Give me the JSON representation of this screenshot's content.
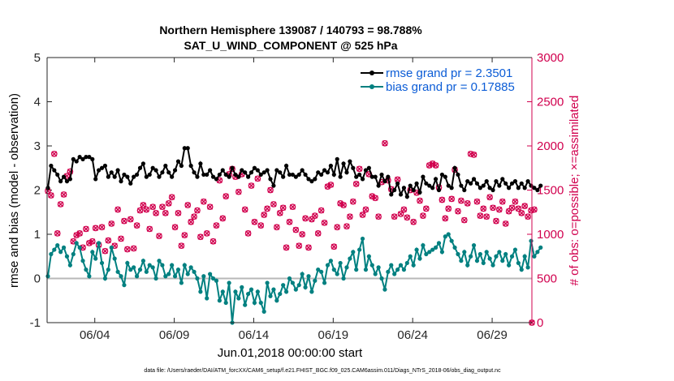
{
  "chart_data": {
    "type": "line",
    "title_line1": "Northern Hemisphere 139087 / 140793 = 98.788%",
    "title_line2": "SAT_U_WIND_COMPONENT @ 525 hPa",
    "xlabel": "Jun.01,2018 00:00:00 start",
    "ylabel_left": "rmse and bias (model - observation)",
    "ylabel_right": "# of obs: o=possible; ×=assimilated",
    "ylim_left": [
      -1,
      5
    ],
    "yticks_left": [
      "-1",
      "0",
      "1",
      "2",
      "3",
      "4",
      "5"
    ],
    "ylim_right": [
      0,
      3000
    ],
    "yticks_right": [
      "0",
      "500",
      "1000",
      "1500",
      "2000",
      "2500",
      "3000"
    ],
    "xlim_days": [
      0,
      30.5
    ],
    "xticks": [
      {
        "day": 3,
        "label": "06/04"
      },
      {
        "day": 8,
        "label": "06/09"
      },
      {
        "day": 13,
        "label": "06/14"
      },
      {
        "day": 18,
        "label": "06/19"
      },
      {
        "day": 23,
        "label": "06/24"
      },
      {
        "day": 28,
        "label": "06/29"
      }
    ],
    "series": [
      {
        "name": "rmse grand pr = 2.3501",
        "color": "#000000",
        "values": [
          2.05,
          2.55,
          2.45,
          2.35,
          2.2,
          2.3,
          2.2,
          2.25,
          2.7,
          2.65,
          2.75,
          2.7,
          2.75,
          2.75,
          2.7,
          2.25,
          2.45,
          2.5,
          2.55,
          2.3,
          2.4,
          2.3,
          2.45,
          2.2,
          2.35,
          2.3,
          2.15,
          2.3,
          2.35,
          2.5,
          2.6,
          2.3,
          2.35,
          2.5,
          2.45,
          2.3,
          2.4,
          2.55,
          2.4,
          2.3,
          2.45,
          2.65,
          2.55,
          2.95,
          2.95,
          2.55,
          2.4,
          2.3,
          2.6,
          2.35,
          2.35,
          2.45,
          2.3,
          2.25,
          2.35,
          2.45,
          2.35,
          2.3,
          2.5,
          2.35,
          2.3,
          2.45,
          2.4,
          2.3,
          2.4,
          2.5,
          2.45,
          2.35,
          2.4,
          2.45,
          2.25,
          2.1,
          2.45,
          2.4,
          2.3,
          2.55,
          2.35,
          2.35,
          2.3,
          2.35,
          2.45,
          2.35,
          2.25,
          2.2,
          2.25,
          2.4,
          2.35,
          2.45,
          2.4,
          2.55,
          2.35,
          2.7,
          2.3,
          2.6,
          2.4,
          2.65,
          2.5,
          2.3,
          2.35,
          2.25,
          2.45,
          2.5,
          2.3,
          2.3,
          2.1,
          2.35,
          2.2,
          2.3,
          1.9,
          2.0,
          2.15,
          1.9,
          2.05,
          1.85,
          2.1,
          2.0,
          2.15,
          1.95,
          2.3,
          2.15,
          2.1,
          2.05,
          2.25,
          2.0,
          2.35,
          2.3,
          2.1,
          2.05,
          2.5,
          2.35,
          2.1,
          2.0,
          2.2,
          2.15,
          2.25,
          2.15,
          2.05,
          2.1,
          2.2,
          2.05,
          2.0,
          2.2,
          2.1,
          2.25,
          2.15,
          2.05,
          2.15,
          2.2,
          2.05,
          2.15,
          2.05,
          2.2,
          2.1,
          2.05,
          2.0,
          2.1
        ]
      },
      {
        "name": "bias grand pr = 0.17885",
        "color": "#008080",
        "values": [
          0.05,
          0.55,
          0.65,
          0.75,
          0.6,
          0.7,
          0.5,
          0.3,
          0.55,
          0.8,
          0.7,
          0.4,
          0.2,
          0.05,
          0.6,
          0.45,
          0.8,
          0.35,
          0.0,
          0.2,
          0.7,
          0.45,
          0.15,
          0.05,
          -0.15,
          0.35,
          0.2,
          0.25,
          0.05,
          0.2,
          0.4,
          0.15,
          0.3,
          0.25,
          0.0,
          0.4,
          0.3,
          0.05,
          0.1,
          0.3,
          0.05,
          0.2,
          -0.1,
          0.3,
          0.1,
          0.25,
          0.15,
          0.0,
          -0.3,
          0.05,
          -0.45,
          0.1,
          0.0,
          -0.05,
          -0.5,
          -0.3,
          -0.55,
          -0.1,
          -1.0,
          -0.3,
          -0.45,
          -0.2,
          -0.6,
          -0.35,
          -0.25,
          -0.55,
          -0.3,
          -0.55,
          -0.75,
          -0.1,
          -0.4,
          -0.25,
          -0.5,
          -0.35,
          -0.15,
          -0.3,
          0.0,
          -0.1,
          -0.25,
          -0.15,
          0.1,
          -0.2,
          0.05,
          -0.3,
          -0.05,
          0.2,
          0.15,
          -0.1,
          0.3,
          0.4,
          0.2,
          0.1,
          0.35,
          0.0,
          0.25,
          0.45,
          0.6,
          0.2,
          0.65,
          0.9,
          0.2,
          0.5,
          0.3,
          0.1,
          0.25,
          0.0,
          -0.25,
          0.15,
          0.3,
          0.1,
          0.2,
          0.3,
          0.2,
          0.35,
          0.5,
          0.3,
          0.65,
          0.45,
          0.75,
          0.55,
          0.6,
          0.65,
          0.7,
          0.8,
          0.6,
          0.95,
          1.0,
          0.85,
          0.7,
          0.55,
          0.4,
          0.6,
          0.3,
          0.5,
          0.75,
          0.4,
          0.55,
          0.35,
          0.6,
          0.45,
          0.3,
          0.5,
          0.6,
          0.4,
          0.55,
          0.3,
          0.5,
          0.65,
          0.35,
          0.2,
          0.5,
          0.25,
          0.85,
          0.5,
          0.6,
          0.7
        ]
      },
      {
        "name": "# of obs possible",
        "color": "#d1004e",
        "values": [
          1490,
          1440,
          1910,
          1010,
          1340,
          1450,
          1660,
          1710,
          920,
          990,
          1010,
          850,
          1060,
          900,
          920,
          1070,
          880,
          1080,
          810,
          930,
          1120,
          870,
          1280,
          950,
          1150,
          830,
          1170,
          840,
          1100,
          1270,
          1330,
          1280,
          1060,
          1310,
          1240,
          980,
          1310,
          1240,
          1350,
          1420,
          1080,
          1240,
          870,
          990,
          1330,
          1140,
          1200,
          1270,
          970,
          1370,
          1010,
          1310,
          920,
          1100,
          1610,
          1180,
          1430,
          1680,
          1740,
          1650,
          1480,
          1680,
          1280,
          1010,
          1550,
          1140,
          1630,
          1100,
          1220,
          1290,
          1500,
          1340,
          1080,
          1240,
          1300,
          850,
          1140,
          1310,
          1050,
          870,
          1000,
          1180,
          850,
          1170,
          1210,
          1010,
          1270,
          1130,
          1540,
          1560,
          860,
          1080,
          1350,
          1330,
          1090,
          1200,
          1370,
          1570,
          1740,
          1220,
          1280,
          1680,
          1430,
          1410,
          1200,
          1590,
          2030,
          1610,
          1510,
          1200,
          1620,
          1230,
          1280,
          1190,
          1500,
          1140,
          1470,
          1380,
          1210,
          1290,
          1780,
          1800,
          1780,
          1530,
          1390,
          1180,
          1290,
          1400,
          1730,
          1260,
          1380,
          1160,
          1350,
          1910,
          1900,
          1370,
          1210,
          1290,
          1200,
          1420,
          1300,
          1150,
          1280,
          1370,
          1120,
          1260,
          1300,
          1370,
          1290,
          1240,
          1320,
          1200,
          1270,
          1280
        ]
      }
    ],
    "legend": [
      {
        "label": "rmse grand pr = 2.3501",
        "color": "#000000"
      },
      {
        "label": "bias grand pr = 0.17885",
        "color": "#008080"
      }
    ],
    "legend_position": "top-right",
    "zero_line": true,
    "last_obs_value": 0,
    "footnote": "data file: /Users/raeder/DAI/ATM_forcXX/CAM6_setup/f.e21.FHIST_BGC.f09_025.CAM6assim.011/Diags_NTrS_2018-06/obs_diag_output.nc"
  }
}
